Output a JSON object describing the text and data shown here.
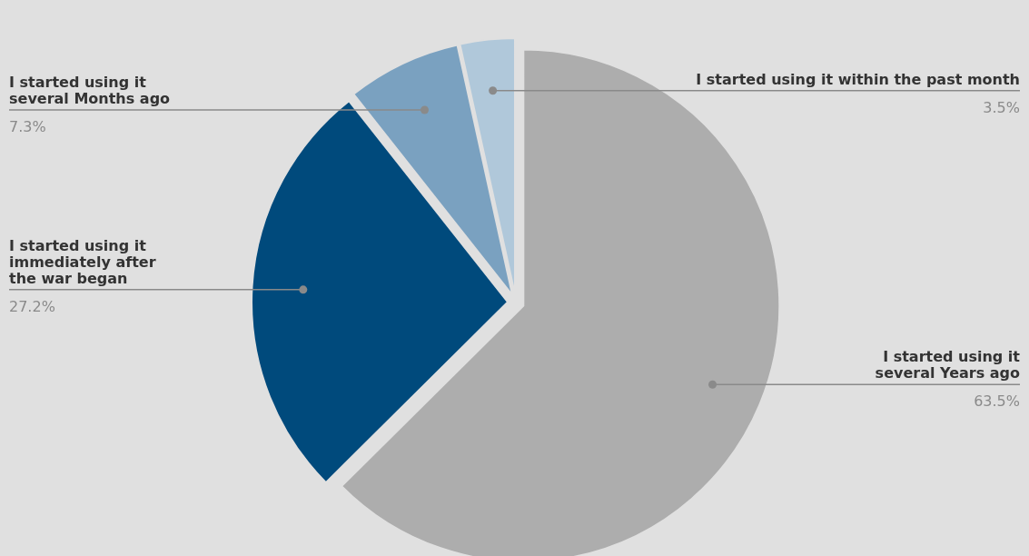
{
  "chart_data": {
    "type": "pie",
    "categories": [
      "I started using it\nseveral Years ago",
      "I started using it\nimmediately after\nthe war began",
      "I started using it\nseveral Months ago",
      "I started using it within the past month"
    ],
    "values": [
      63.5,
      27.2,
      7.3,
      3.5
    ],
    "value_labels": [
      "63.5%",
      "27.2%",
      "7.3%",
      "3.5%"
    ],
    "colors": [
      "#adadad",
      "#004a7c",
      "#7aa1c0",
      "#b0c8da"
    ]
  }
}
